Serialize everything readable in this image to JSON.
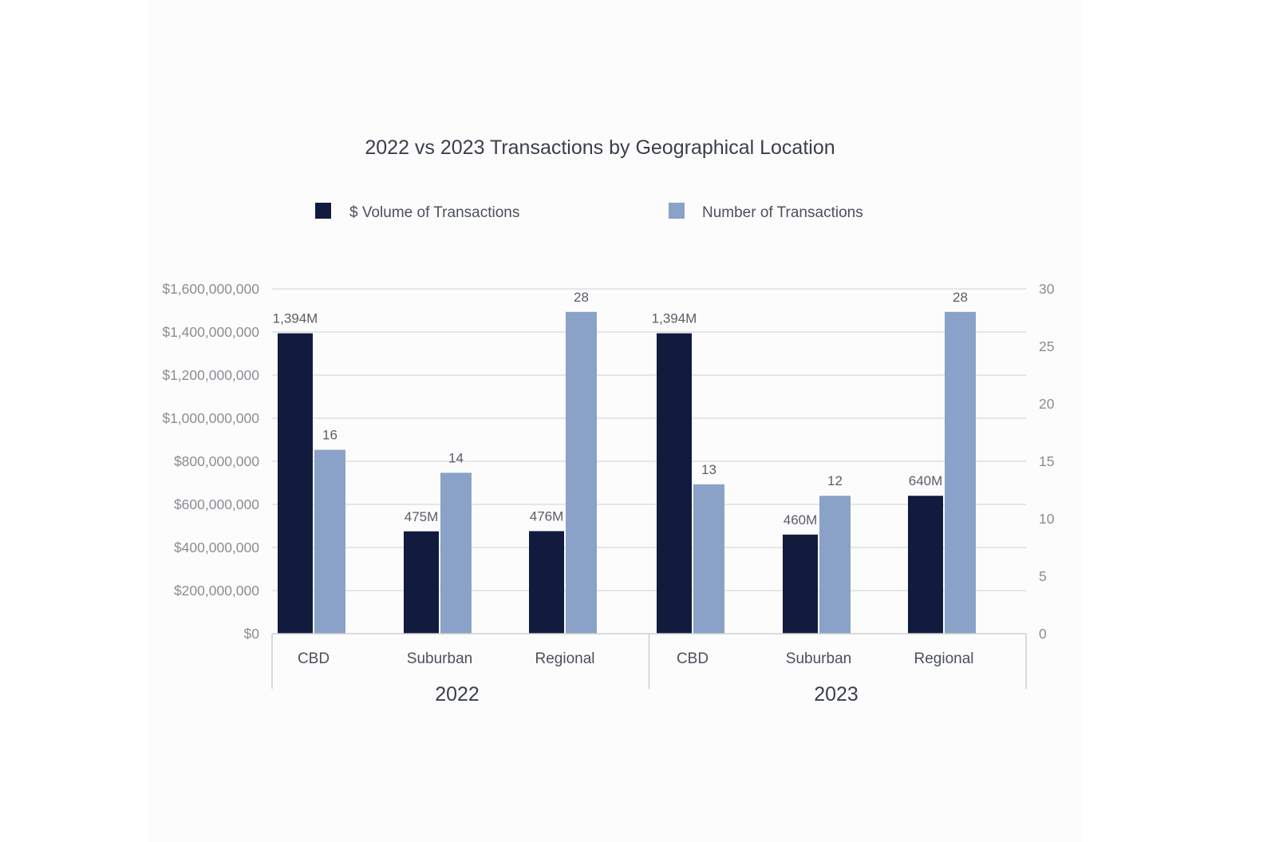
{
  "chart_data": {
    "type": "bar",
    "title": "2022 vs 2023 Transactions by Geographical Location",
    "groups": [
      {
        "name": "2022",
        "categories": [
          "CBD",
          "Suburban",
          "Regional"
        ]
      },
      {
        "name": "2023",
        "categories": [
          "CBD",
          "Suburban",
          "Regional"
        ]
      }
    ],
    "series": [
      {
        "name": "$ Volume of Transactions",
        "axis": "left",
        "color": "#111b3e",
        "values": [
          1394000000,
          475000000,
          476000000,
          1394000000,
          460000000,
          640000000
        ],
        "labels": [
          "1,394M",
          "475M",
          "476M",
          "1,394M",
          "460M",
          "640M"
        ]
      },
      {
        "name": "Number of Transactions",
        "axis": "right",
        "color": "#8aa2c8",
        "values": [
          16,
          14,
          28,
          13,
          12,
          28
        ],
        "labels": [
          "16",
          "14",
          "28",
          "13",
          "12",
          "28"
        ]
      }
    ],
    "y_left": {
      "ylim": [
        0,
        1600000000
      ],
      "ticks": [
        0,
        200000000,
        400000000,
        600000000,
        800000000,
        1000000000,
        1200000000,
        1400000000,
        1600000000
      ],
      "tick_labels": [
        "$0",
        "$200,000,000",
        "$400,000,000",
        "$600,000,000",
        "$800,000,000",
        "$1,000,000,000",
        "$1,200,000,000",
        "$1,400,000,000",
        "$1,600,000,000"
      ]
    },
    "y_right": {
      "ylim": [
        0,
        30
      ],
      "ticks": [
        0,
        5,
        10,
        15,
        20,
        25,
        30
      ],
      "tick_labels": [
        "0",
        "5",
        "10",
        "15",
        "20",
        "25",
        "30"
      ]
    },
    "legend_position": "top",
    "grid": true
  }
}
